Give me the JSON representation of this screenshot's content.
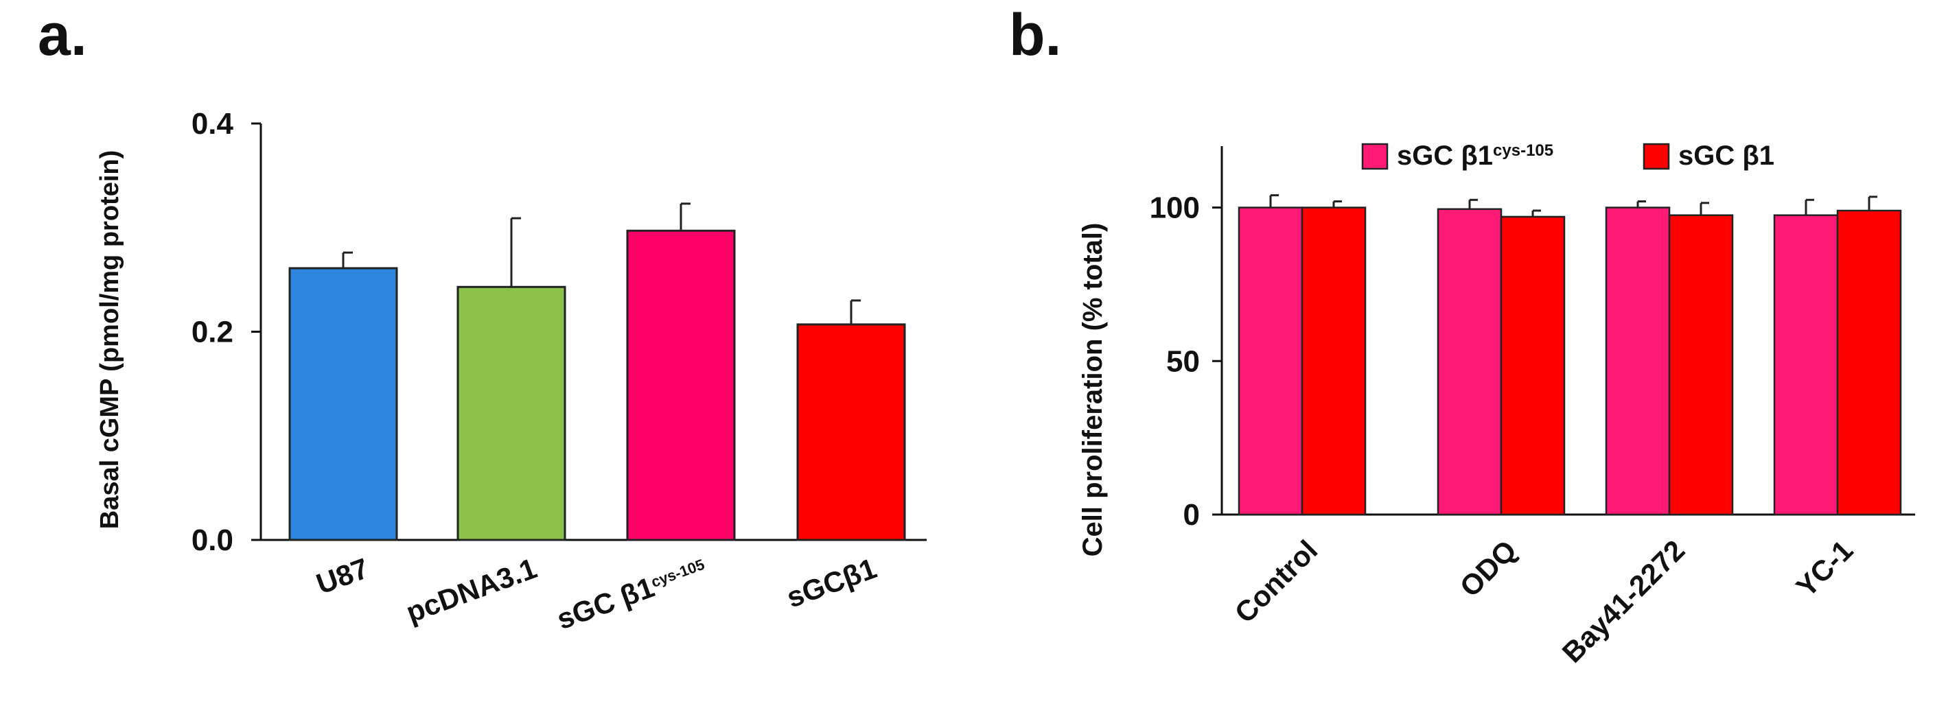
{
  "panels": {
    "a": {
      "letter": "a."
    },
    "b": {
      "letter": "b."
    }
  },
  "colors": {
    "u87": "#2e86de",
    "pcdna": "#8bc34a",
    "cys105": "#ff0066",
    "beta1": "#ff0000",
    "outline": "#222222"
  },
  "chart_data": [
    {
      "type": "bar",
      "title": "",
      "xlabel": "",
      "ylabel": "Basal cGMP (pmol/mg protein)",
      "ylim": [
        0,
        0.4
      ],
      "yticks": [
        {
          "value": 0.0,
          "label": "0.0"
        },
        {
          "value": 0.2,
          "label": "0.2"
        },
        {
          "value": 0.4,
          "label": "0.4"
        }
      ],
      "categories": [
        {
          "base": "U87",
          "sup": "",
          "value": 0.261,
          "error": 0.015,
          "color": "#2e86de"
        },
        {
          "base": "pcDNA3.1",
          "sup": "",
          "value": 0.243,
          "error": 0.066,
          "color": "#8bc34a"
        },
        {
          "base": "sGC β1",
          "sup": "cys-105",
          "value": 0.297,
          "error": 0.026,
          "color": "#ff0066"
        },
        {
          "base": "sGCβ1",
          "sup": "",
          "value": 0.207,
          "error": 0.023,
          "color": "#ff0000"
        }
      ]
    },
    {
      "type": "bar",
      "title": "",
      "xlabel": "",
      "ylabel": "Cell proliferation (% total)",
      "ylim": [
        0,
        120
      ],
      "yticks": [
        {
          "value": 0,
          "label": "0"
        },
        {
          "value": 50,
          "label": "50"
        },
        {
          "value": 100,
          "label": "100"
        }
      ],
      "categories": [
        "Control",
        "ODQ",
        "Bay41-2272",
        "YC-1"
      ],
      "legend_position": "top",
      "series": [
        {
          "name": "sGC β1",
          "sup": "cys-105",
          "color": "#ff1a75",
          "values": [
            100,
            99.5,
            100,
            97.5
          ],
          "errors": [
            4,
            3,
            2,
            5
          ]
        },
        {
          "name": "sGC β1",
          "sup": "",
          "color": "#ff0000",
          "values": [
            100,
            97,
            97.5,
            99
          ],
          "errors": [
            2,
            2,
            4,
            4.5
          ]
        }
      ]
    }
  ]
}
